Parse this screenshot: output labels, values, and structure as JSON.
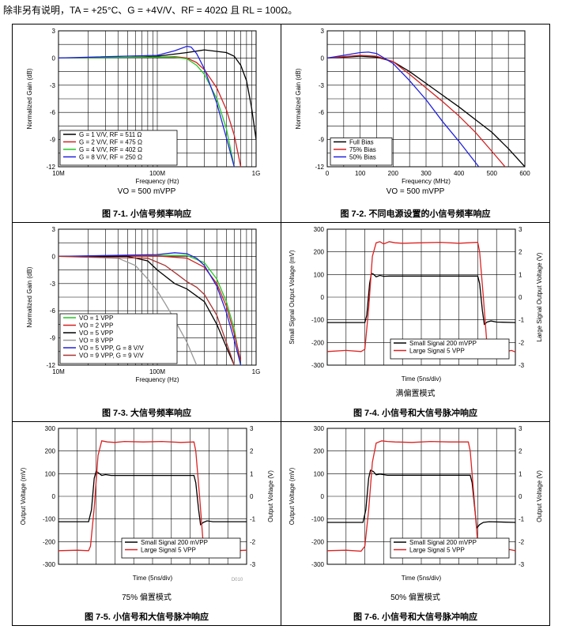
{
  "header": {
    "conditions": "除非另有说明，TA = +25°C、G = +4V/V、RF = 402Ω 且 RL = 100Ω。"
  },
  "figures": [
    {
      "caption": "图 7-1. 小信号频率响应",
      "subtitle": "VO = 500 mVPP",
      "xlabel": "Frequency (Hz)",
      "ylabel": "Normalized Gain (dB)",
      "xticks": [
        "10M",
        "100M",
        "1G"
      ],
      "yticks": [
        "3",
        "0",
        "-3",
        "-6",
        "-9",
        "-12"
      ],
      "legend": [
        "G = 1 V/V, RF = 511 Ω",
        "G = 2 V/V, RF = 475 Ω",
        "G = 4 V/V, RF = 402 Ω",
        "G = 8 V/V, RF = 250 Ω"
      ]
    },
    {
      "caption": "图 7-2. 不同电源设置的小信号频率响应",
      "subtitle": "VO = 500 mVPP",
      "xlabel": "Frequency (MHz)",
      "ylabel": "Normalized Gain (dB)",
      "xticks": [
        "0",
        "100",
        "200",
        "300",
        "400",
        "500",
        "600"
      ],
      "yticks": [
        "3",
        "0",
        "-3",
        "-6",
        "-9",
        "-12"
      ],
      "legend": [
        "Full Bias",
        "75% Bias",
        "50% Bias"
      ]
    },
    {
      "caption": "图 7-3. 大信号频率响应",
      "subtitle": "",
      "xlabel": "Frequency (Hz)",
      "ylabel": "Normalized Gain (dB)",
      "xticks": [
        "10M",
        "100M",
        "1G"
      ],
      "yticks": [
        "3",
        "0",
        "-3",
        "-6",
        "-9",
        "-12"
      ],
      "legend": [
        "VO = 1 VPP",
        "VO = 2 VPP",
        "VO = 5 VPP",
        "VO = 8 VPP",
        "VO = 5 VPP, G = 8 V/V",
        "VO = 9 VPP, G = 9 V/V"
      ]
    },
    {
      "caption": "图 7-4. 小信号和大信号脉冲响应",
      "subtitle": "满偏置模式",
      "xlabel": "Time (5ns/div)",
      "ylabel": "Small Signal Output Voltage (mV)",
      "y2label": "Large Signal Output Voltage (V)",
      "yticks": [
        "300",
        "200",
        "100",
        "0",
        "-100",
        "-200",
        "-300"
      ],
      "y2ticks": [
        "3",
        "2",
        "1",
        "0",
        "-1",
        "-2",
        "-3"
      ],
      "legend": [
        "Small Signal 200 mVPP",
        "Large Signal 5 VPP"
      ]
    },
    {
      "caption": "图 7-5. 小信号和大信号脉冲响应",
      "subtitle": "75% 偏置模式",
      "xlabel": "Time (5ns/div)",
      "ylabel": "Output Voltage (mV)",
      "y2label": "Output Voltage (V)",
      "yticks": [
        "300",
        "200",
        "100",
        "0",
        "-100",
        "-200",
        "-300"
      ],
      "y2ticks": [
        "3",
        "2",
        "1",
        "0",
        "-1",
        "-2",
        "-3"
      ],
      "legend": [
        "Small Signal 200 mVPP",
        "Large Signal 5 VPP"
      ],
      "watermark": "D010"
    },
    {
      "caption": "图 7-6. 小信号和大信号脉冲响应",
      "subtitle": "50% 偏置模式",
      "xlabel": "Time (5ns/div)",
      "ylabel": "Output Voltage (mV)",
      "y2label": "Output Voltage (V)",
      "yticks": [
        "300",
        "200",
        "100",
        "0",
        "-100",
        "-200",
        "-300"
      ],
      "y2ticks": [
        "3",
        "2",
        "1",
        "0",
        "-1",
        "-2",
        "-3"
      ],
      "legend": [
        "Small Signal 200 mVPP",
        "Large Signal 5 VPP"
      ]
    }
  ],
  "chart_data": [
    {
      "type": "line",
      "title": "图 7-1. 小信号频率响应",
      "xscale": "log",
      "xlabel": "Frequency (Hz)",
      "ylabel": "Normalized Gain (dB)",
      "xlim": [
        10000000,
        1000000000
      ],
      "ylim": [
        -12,
        3
      ],
      "series": [
        {
          "name": "G = 1 V/V, RF = 511 Ω",
          "color": "#000000",
          "x": [
            10000000,
            50000000,
            100000000,
            200000000,
            300000000,
            500000000,
            600000000,
            700000000,
            800000000,
            900000000,
            1000000000
          ],
          "y": [
            0,
            0.05,
            0.2,
            0.6,
            0.9,
            0.6,
            0.2,
            -0.8,
            -2.5,
            -5.5,
            -9
          ]
        },
        {
          "name": "G = 2 V/V, RF = 475 Ω",
          "color": "#d42020",
          "x": [
            10000000,
            100000000,
            150000000,
            200000000,
            250000000,
            300000000,
            400000000,
            500000000,
            600000000,
            700000000
          ],
          "y": [
            0,
            0.1,
            0.15,
            0,
            -0.5,
            -1.3,
            -3.3,
            -5.7,
            -8.5,
            -12
          ]
        },
        {
          "name": "G = 4 V/V, RF = 402 Ω",
          "color": "#22c822",
          "x": [
            10000000,
            100000000,
            150000000,
            200000000,
            250000000,
            300000000,
            400000000,
            500000000,
            600000000
          ],
          "y": [
            0,
            0.1,
            0.1,
            -0.1,
            -0.8,
            -1.8,
            -4.5,
            -7.8,
            -12
          ]
        },
        {
          "name": "G = 8 V/V, RF = 250 Ω",
          "color": "#2020e0",
          "x": [
            10000000,
            100000000,
            150000000,
            200000000,
            220000000,
            250000000,
            300000000,
            400000000,
            500000000,
            600000000
          ],
          "y": [
            0,
            0.3,
            0.8,
            1.3,
            1.2,
            0.5,
            -1.2,
            -5,
            -8.8,
            -12
          ]
        }
      ]
    },
    {
      "type": "line",
      "title": "图 7-2. 不同电源设置的小信号频率响应",
      "xlabel": "Frequency (MHz)",
      "ylabel": "Normalized Gain (dB)",
      "xlim": [
        0,
        600
      ],
      "ylim": [
        -12,
        3
      ],
      "series": [
        {
          "name": "Full Bias",
          "color": "#000000",
          "x": [
            0,
            50,
            100,
            150,
            200,
            250,
            300,
            350,
            400,
            450,
            500,
            550,
            600
          ],
          "y": [
            0,
            0.1,
            0.2,
            0.1,
            -0.4,
            -1.5,
            -2.8,
            -4.1,
            -5.4,
            -6.8,
            -8.2,
            -10,
            -12
          ]
        },
        {
          "name": "75% Bias",
          "color": "#d42020",
          "x": [
            0,
            50,
            100,
            150,
            200,
            250,
            300,
            350,
            400,
            450,
            500,
            540
          ],
          "y": [
            0,
            0.15,
            0.3,
            0.2,
            -0.4,
            -1.8,
            -3.3,
            -4.8,
            -6.4,
            -8.2,
            -10.3,
            -12
          ]
        },
        {
          "name": "50% Bias",
          "color": "#2020e0",
          "x": [
            0,
            50,
            100,
            125,
            150,
            200,
            250,
            300,
            350,
            400,
            460
          ],
          "y": [
            0,
            0.3,
            0.6,
            0.65,
            0.5,
            -0.6,
            -2.5,
            -4.6,
            -7,
            -9.2,
            -12
          ]
        }
      ]
    },
    {
      "type": "line",
      "title": "图 7-3. 大信号频率响应",
      "xscale": "log",
      "xlabel": "Frequency (Hz)",
      "ylabel": "Normalized Gain (dB)",
      "xlim": [
        10000000,
        1000000000
      ],
      "ylim": [
        -12,
        3
      ],
      "series": [
        {
          "name": "VO = 1 VPP",
          "color": "#22c822",
          "x": [
            10000000,
            100000000,
            200000000,
            300000000,
            400000000,
            500000000,
            600000000,
            700000000
          ],
          "y": [
            0,
            0.1,
            0.1,
            -0.7,
            -2.5,
            -5,
            -8,
            -12
          ]
        },
        {
          "name": "VO = 2 VPP",
          "color": "#d42020",
          "x": [
            10000000,
            100000000,
            200000000,
            300000000,
            400000000,
            500000000,
            600000000,
            700000000
          ],
          "y": [
            0,
            0.05,
            -0.2,
            -1.2,
            -3,
            -5.5,
            -8.5,
            -11.5
          ]
        },
        {
          "name": "VO = 5 VPP",
          "color": "#000000",
          "x": [
            10000000,
            50000000,
            80000000,
            100000000,
            150000000,
            200000000,
            300000000,
            400000000,
            500000000,
            600000000
          ],
          "y": [
            0,
            0,
            -0.5,
            -1.5,
            -3,
            -3.6,
            -5,
            -7.5,
            -10,
            -12
          ]
        },
        {
          "name": "VO = 8 VPP",
          "color": "#999999",
          "x": [
            10000000,
            40000000,
            60000000,
            80000000,
            100000000,
            120000000,
            150000000,
            200000000,
            250000000
          ],
          "y": [
            0,
            -0.2,
            -1,
            -2.5,
            -3.8,
            -5.2,
            -7,
            -9.5,
            -12
          ]
        },
        {
          "name": "VO = 5 VPP, G = 8 V/V",
          "color": "#2020e0",
          "x": [
            10000000,
            100000000,
            150000000,
            200000000,
            250000000,
            300000000,
            400000000,
            500000000,
            600000000,
            700000000
          ],
          "y": [
            0,
            0.2,
            0.4,
            0.3,
            -0.2,
            -1,
            -3.3,
            -6.2,
            -9.2,
            -12
          ]
        },
        {
          "name": "VO = 9 VPP, G = 9 V/V",
          "color": "#a83232",
          "x": [
            10000000,
            80000000,
            120000000,
            160000000,
            200000000,
            250000000,
            300000000,
            400000000,
            500000000,
            600000000
          ],
          "y": [
            0,
            -0.2,
            -1,
            -2,
            -2.8,
            -3.4,
            -4.2,
            -6.5,
            -9.5,
            -12
          ]
        }
      ]
    },
    {
      "type": "line",
      "title": "图 7-4. 小信号和大信号脉冲响应",
      "xlabel": "Time (5ns/div)",
      "ylabel": "Small Signal Output Voltage (mV)",
      "y2label": "Large Signal Output Voltage (V)",
      "xlim": [
        0,
        10
      ],
      "ylim": [
        -300,
        300
      ],
      "y2lim": [
        -3,
        3
      ],
      "series": [
        {
          "name": "Small Signal 200 mVPP",
          "color": "#000000",
          "axis": "y",
          "x": [
            0,
            2.0,
            2.1,
            2.25,
            2.35,
            2.45,
            2.6,
            2.8,
            3.0,
            3.3,
            6.0,
            8.0,
            8.1,
            8.25,
            8.35,
            8.5,
            8.7,
            9.0,
            10
          ],
          "y": [
            -112,
            -112,
            -80,
            60,
            105,
            102,
            90,
            96,
            92,
            93,
            93,
            93,
            60,
            -60,
            -120,
            -110,
            -105,
            -110,
            -112
          ]
        },
        {
          "name": "Large Signal 5 VPP",
          "color": "#dd2222",
          "axis": "y2",
          "x": [
            0,
            1.0,
            1.8,
            2.0,
            2.2,
            2.4,
            2.6,
            2.8,
            3.0,
            3.3,
            3.6,
            4.0,
            5.0,
            6.0,
            7.0,
            8.0,
            8.1,
            8.3,
            8.5,
            8.7,
            8.9,
            9.1,
            9.3,
            9.5,
            9.8,
            10
          ],
          "y": [
            -2.4,
            -2.35,
            -2.4,
            -2.3,
            -0.5,
            1.8,
            2.4,
            2.45,
            2.35,
            2.45,
            2.4,
            2.38,
            2.4,
            2.42,
            2.38,
            2.42,
            2.0,
            0,
            -2.2,
            -2.5,
            -2.35,
            -2.45,
            -2.3,
            -2.4,
            -2.35,
            -2.42
          ]
        }
      ]
    },
    {
      "type": "line",
      "title": "图 7-5. 小信号和大信号脉冲响应",
      "xlabel": "Time (5ns/div)",
      "ylabel": "Output Voltage (mV)",
      "y2label": "Output Voltage (V)",
      "xlim": [
        0,
        10
      ],
      "ylim": [
        -300,
        300
      ],
      "y2lim": [
        -3,
        3
      ],
      "series": [
        {
          "name": "Small Signal 200 mVPP",
          "color": "#000000",
          "axis": "y",
          "x": [
            0,
            1.6,
            1.75,
            1.9,
            2.0,
            2.1,
            2.3,
            2.5,
            2.8,
            5.0,
            7.2,
            7.3,
            7.45,
            7.55,
            7.7,
            7.9,
            8.2,
            10
          ],
          "y": [
            -112,
            -112,
            -60,
            80,
            110,
            105,
            92,
            96,
            92,
            92,
            92,
            60,
            -60,
            -125,
            -115,
            -108,
            -112,
            -112
          ]
        },
        {
          "name": "Large Signal 5 VPP",
          "color": "#dd2222",
          "axis": "y2",
          "x": [
            0,
            1.0,
            1.6,
            1.7,
            1.9,
            2.1,
            2.3,
            2.6,
            3.0,
            3.5,
            4.5,
            5.5,
            6.5,
            7.2,
            7.3,
            7.5,
            7.7,
            7.9,
            8.2,
            8.6,
            9.0,
            9.4,
            10
          ],
          "y": [
            -2.4,
            -2.38,
            -2.4,
            -2.2,
            -0.5,
            1.8,
            2.45,
            2.4,
            2.38,
            2.42,
            2.4,
            2.42,
            2.38,
            2.4,
            2.0,
            0,
            -2.2,
            -2.4,
            -2.35,
            -2.45,
            -2.3,
            -2.4,
            -2.38
          ]
        }
      ]
    },
    {
      "type": "line",
      "title": "图 7-6. 小信号和大信号脉冲响应",
      "xlabel": "Time (5ns/div)",
      "ylabel": "Output Voltage (mV)",
      "y2label": "Output Voltage (V)",
      "xlim": [
        0,
        10
      ],
      "ylim": [
        -300,
        300
      ],
      "y2lim": [
        -3,
        3
      ],
      "series": [
        {
          "name": "Small Signal 200 mVPP",
          "color": "#000000",
          "axis": "y",
          "x": [
            0,
            1.9,
            2.05,
            2.2,
            2.3,
            2.45,
            2.6,
            2.8,
            3.2,
            6.0,
            7.6,
            7.7,
            7.85,
            7.95,
            8.1,
            8.3,
            8.6,
            10
          ],
          "y": [
            -115,
            -115,
            -60,
            80,
            115,
            110,
            95,
            98,
            93,
            93,
            93,
            60,
            -60,
            -140,
            -125,
            -115,
            -112,
            -115
          ]
        },
        {
          "name": "Large Signal 5 VPP",
          "color": "#dd2222",
          "axis": "y2",
          "x": [
            0,
            1.0,
            1.8,
            2.0,
            2.2,
            2.4,
            2.6,
            2.9,
            3.2,
            3.6,
            4.5,
            5.5,
            6.5,
            7.5,
            7.6,
            7.8,
            8.0,
            8.2,
            8.5,
            8.9,
            9.3,
            9.7,
            10
          ],
          "y": [
            -2.4,
            -2.38,
            -2.42,
            -2.2,
            -0.6,
            1.5,
            2.35,
            2.45,
            2.42,
            2.4,
            2.38,
            2.42,
            2.4,
            2.4,
            2.0,
            0,
            -2.1,
            -2.5,
            -2.4,
            -2.3,
            -2.45,
            -2.35,
            -2.4
          ]
        }
      ]
    }
  ]
}
